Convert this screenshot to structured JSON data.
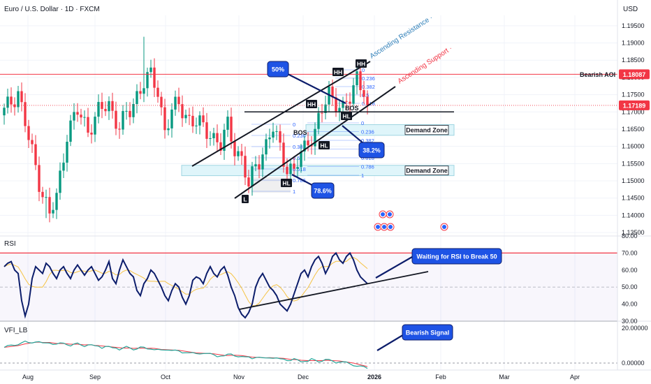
{
  "header": {
    "title": "Euro / U.S. Dollar · 1D · FXCM",
    "currency": "USD"
  },
  "colors": {
    "up": "#089981",
    "down": "#f23645",
    "resistance": "#f23645",
    "ann_blue": "#1e53e5",
    "rsi_line": "#0c1d6b",
    "rsi_ma": "#f5c343",
    "vfi_line": "#26a69a",
    "vfi_signal": "#f23645",
    "fib": "#2962ff"
  },
  "price_axis": {
    "range": [
      1.134,
      1.198
    ],
    "ticks": [
      "1.19500",
      "1.19000",
      "1.18500",
      "1.18000",
      "1.17500",
      "1.17000",
      "1.16500",
      "1.16000",
      "1.15500",
      "1.15000",
      "1.14500",
      "1.14000",
      "1.13500"
    ],
    "last_price": "1.17189",
    "aoi_price": "1.18087"
  },
  "time_axis": {
    "labels": [
      "Aug",
      "Sep",
      "Oct",
      "Nov",
      "Dec",
      "2026",
      "Feb",
      "Mar",
      "Apr"
    ]
  },
  "chart_data": [
    {
      "type": "candlestick",
      "series_name": "Euro / U.S. Dollar",
      "bar_count": 105,
      "close_path": [
        {
          "i": 0,
          "v": 1.17
        },
        {
          "i": 4,
          "v": 1.176
        },
        {
          "i": 7,
          "v": 1.162
        },
        {
          "i": 10,
          "v": 1.15
        },
        {
          "i": 13,
          "v": 1.14
        },
        {
          "i": 15,
          "v": 1.145
        },
        {
          "i": 18,
          "v": 1.164
        },
        {
          "i": 21,
          "v": 1.17
        },
        {
          "i": 24,
          "v": 1.165
        },
        {
          "i": 27,
          "v": 1.17
        },
        {
          "i": 30,
          "v": 1.172
        },
        {
          "i": 33,
          "v": 1.166
        },
        {
          "i": 36,
          "v": 1.17
        },
        {
          "i": 38,
          "v": 1.175
        },
        {
          "i": 40,
          "v": 1.179
        },
        {
          "i": 42,
          "v": 1.18
        },
        {
          "i": 44,
          "v": 1.176
        },
        {
          "i": 46,
          "v": 1.165
        },
        {
          "i": 48,
          "v": 1.17
        },
        {
          "i": 50,
          "v": 1.172
        },
        {
          "i": 53,
          "v": 1.168
        },
        {
          "i": 56,
          "v": 1.166
        },
        {
          "i": 59,
          "v": 1.164
        },
        {
          "i": 62,
          "v": 1.16
        },
        {
          "i": 64,
          "v": 1.166
        },
        {
          "i": 66,
          "v": 1.16
        },
        {
          "i": 68,
          "v": 1.156
        },
        {
          "i": 70,
          "v": 1.148
        },
        {
          "i": 72,
          "v": 1.155
        },
        {
          "i": 75,
          "v": 1.16
        },
        {
          "i": 77,
          "v": 1.165
        },
        {
          "i": 79,
          "v": 1.16
        },
        {
          "i": 81,
          "v": 1.154
        },
        {
          "i": 83,
          "v": 1.152
        },
        {
          "i": 85,
          "v": 1.158
        },
        {
          "i": 87,
          "v": 1.162
        },
        {
          "i": 89,
          "v": 1.164
        },
        {
          "i": 91,
          "v": 1.17
        },
        {
          "i": 93,
          "v": 1.176
        },
        {
          "i": 95,
          "v": 1.173
        },
        {
          "i": 97,
          "v": 1.17
        },
        {
          "i": 99,
          "v": 1.174
        },
        {
          "i": 101,
          "v": 1.181
        },
        {
          "i": 103,
          "v": 1.176
        },
        {
          "i": 104,
          "v": 1.1719
        }
      ],
      "low_extreme": {
        "i": 12,
        "v": 1.1392
      },
      "high_extreme": {
        "i": 40,
        "v": 1.1918
      },
      "levels": [
        {
          "label": "Bearish AOI",
          "value": 1.1809
        },
        {
          "label": "",
          "value": 1.17
        }
      ],
      "zones": [
        {
          "label": "Demand Zone",
          "from": 1.1632,
          "to": 1.1663
        },
        {
          "label": "Demand Zone",
          "from": 1.1515,
          "to": 1.1545
        }
      ],
      "trend_labels": [
        "Ascending Resistance",
        "Ascending Support"
      ],
      "structure_labels": [
        "HH",
        "HH",
        "HH",
        "HL",
        "HL",
        "HL",
        "BOS",
        "BOS",
        "L"
      ],
      "callouts": [
        "50%",
        "38.2%",
        "78.6%"
      ],
      "fib_levels_1": [
        "0",
        "0.236",
        "0.382",
        "0.5",
        "0.618",
        "0.786",
        "1"
      ],
      "fib_levels_2": [
        "0",
        "0.236",
        "0.382",
        "0.5",
        "0.618",
        "0.786",
        "1"
      ],
      "fib_levels_3": [
        "0",
        "0.236",
        "0.382",
        "0.5",
        "0.618"
      ]
    },
    {
      "type": "line",
      "title": "RSI",
      "ylim": [
        30,
        80
      ],
      "ticks": [
        "80.00",
        "70.00",
        "60.00",
        "50.00",
        "40.00",
        "30.00"
      ],
      "levels": [
        70,
        50,
        30
      ],
      "values": [
        62,
        64,
        65,
        60,
        58,
        42,
        33,
        40,
        55,
        62,
        60,
        58,
        64,
        62,
        58,
        55,
        60,
        62,
        58,
        55,
        60,
        63,
        60,
        57,
        60,
        62,
        58,
        54,
        56,
        60,
        65,
        55,
        52,
        60,
        66,
        62,
        58,
        56,
        48,
        45,
        52,
        55,
        60,
        58,
        54,
        50,
        45,
        42,
        48,
        52,
        50,
        44,
        40,
        45,
        54,
        56,
        55,
        52,
        58,
        62,
        58,
        56,
        60,
        62,
        57,
        50,
        45,
        38,
        34,
        32,
        35,
        40,
        50,
        55,
        58,
        54,
        50,
        48,
        45,
        40,
        38,
        36,
        40,
        46,
        52,
        58,
        60,
        56,
        62,
        66,
        68,
        64,
        58,
        62,
        68,
        70,
        66,
        64,
        68,
        70,
        66,
        60,
        56,
        54,
        52
      ],
      "annotation": "Waiting for RSI to Break 50"
    },
    {
      "type": "line",
      "title": "VFI_LB",
      "ticks": [
        "20.00000",
        "0.00000"
      ],
      "ylim": [
        -4,
        24
      ],
      "values": [
        9,
        9.5,
        10,
        10.5,
        11,
        11.5,
        12,
        11.5,
        12,
        12.5,
        12,
        11,
        11.5,
        12,
        11,
        10.5,
        11,
        11.5,
        11,
        10,
        10.5,
        11,
        10.5,
        10,
        10.5,
        10,
        9.5,
        10,
        9,
        9.5,
        9,
        8.5,
        9,
        8,
        8.5,
        9,
        8.5,
        8,
        8.5,
        9,
        8.5,
        8,
        8.5,
        8,
        7.5,
        7,
        7.5,
        8,
        7.5,
        7,
        6.5,
        6,
        6.5,
        6,
        5.5,
        5,
        5.5,
        6,
        5.5,
        5,
        4.5,
        4,
        4.5,
        4,
        4.5,
        5,
        4.5,
        4,
        3.5,
        3,
        3.5,
        3,
        3.5,
        3,
        2.5,
        3,
        3.5,
        3,
        2.5,
        2,
        2.5,
        2,
        1.5,
        2,
        1.5,
        1,
        1.5,
        1,
        2,
        1.5,
        1,
        1.5,
        2,
        1.5,
        1,
        0.5,
        1,
        0.5,
        0,
        -0.5,
        -1,
        -1.5,
        -2,
        -2.5,
        -3
      ],
      "annotation": "Bearish Signal"
    }
  ]
}
